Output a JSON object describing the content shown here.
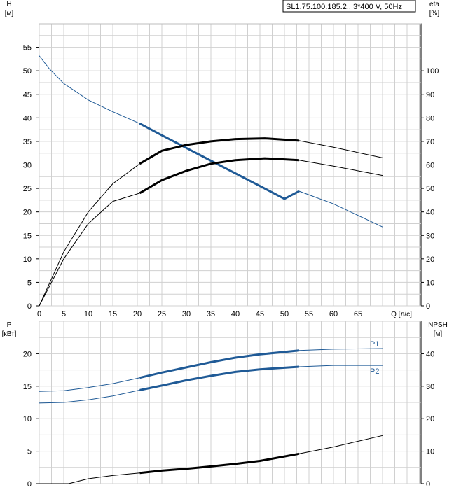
{
  "chart_data": [
    {
      "type": "line",
      "title_box": "SL1.75.100.185.2., 3*400 V, 50Hz",
      "xlabel": "Q [л/с]",
      "ylabel_left": [
        "H",
        "[м]"
      ],
      "ylabel_right": [
        "eta",
        "[%]"
      ],
      "xlim": [
        0,
        70
      ],
      "x_ticks": [
        0,
        5,
        10,
        15,
        20,
        25,
        30,
        35,
        40,
        45,
        50,
        55,
        60,
        65
      ],
      "ylim_left": [
        0,
        60
      ],
      "y_ticks_left": [
        0,
        5,
        10,
        15,
        20,
        25,
        30,
        35,
        40,
        45,
        50,
        55
      ],
      "ylim_right": [
        0,
        120
      ],
      "y_ticks_right": [
        0,
        10,
        20,
        30,
        40,
        50,
        60,
        70,
        80,
        90,
        100
      ],
      "grid": true,
      "series": [
        {
          "axis": "left",
          "color": "#1f5a96",
          "x": [
            0,
            2,
            5,
            10,
            15,
            20.5,
            25,
            30,
            35,
            40,
            45,
            50,
            53,
            60,
            70
          ],
          "y": [
            53.2,
            50.5,
            47.3,
            43.8,
            41.3,
            38.8,
            36.3,
            33.6,
            30.9,
            28.2,
            25.5,
            22.8,
            24.4,
            21.7,
            16.8
          ],
          "bold_range": [
            20.5,
            53
          ]
        },
        {
          "axis": "right",
          "color": "#000000",
          "x": [
            0,
            5,
            10,
            15,
            20.5,
            25,
            30,
            35,
            40,
            46,
            53,
            60,
            70
          ],
          "y": [
            0,
            23,
            40,
            52,
            60.5,
            66,
            68.5,
            70,
            71,
            71.3,
            70.3,
            67.5,
            63
          ],
          "bold_range": [
            20.5,
            53
          ]
        },
        {
          "axis": "right",
          "color": "#000000",
          "x": [
            0,
            5,
            10,
            15,
            20.5,
            25,
            30,
            35,
            40,
            46,
            53,
            60,
            70
          ],
          "y": [
            0,
            20,
            35,
            44.5,
            48,
            53.5,
            57.5,
            60.5,
            62,
            62.8,
            62,
            59.5,
            55.5
          ],
          "bold_range": [
            20.5,
            53
          ]
        }
      ]
    },
    {
      "type": "line",
      "xlim": [
        0,
        70
      ],
      "ylabel_left": [
        "P",
        "[кВт]"
      ],
      "ylabel_right": [
        "NPSH",
        "[м]"
      ],
      "ylim_left": [
        0,
        25
      ],
      "y_ticks_left": [
        0,
        5,
        10,
        15,
        20
      ],
      "ylim_right": [
        0,
        50
      ],
      "y_ticks_right": [
        0,
        10,
        20,
        30,
        40
      ],
      "grid": true,
      "series": [
        {
          "name": "P1",
          "axis": "left",
          "color": "#1f5a96",
          "x": [
            0,
            5,
            10,
            15,
            20.5,
            25,
            30,
            35,
            40,
            45,
            53,
            60,
            70
          ],
          "y": [
            14.2,
            14.3,
            14.8,
            15.4,
            16.3,
            17.1,
            17.9,
            18.7,
            19.4,
            19.9,
            20.5,
            20.7,
            20.8
          ],
          "bold_range": [
            20.5,
            53
          ]
        },
        {
          "name": "P2",
          "axis": "left",
          "color": "#1f5a96",
          "x": [
            0,
            5,
            10,
            15,
            20.5,
            25,
            30,
            35,
            40,
            45,
            53,
            60,
            70
          ],
          "y": [
            12.4,
            12.5,
            12.9,
            13.5,
            14.4,
            15.1,
            15.9,
            16.6,
            17.2,
            17.6,
            18.0,
            18.2,
            18.2
          ],
          "bold_range": [
            20.5,
            53
          ]
        },
        {
          "axis": "right",
          "color": "#000000",
          "x": [
            0,
            6,
            10,
            15,
            20.5,
            25,
            30,
            35,
            40,
            45,
            53,
            60,
            70
          ],
          "y": [
            0,
            0,
            1.5,
            2.5,
            3.3,
            4,
            4.6,
            5.3,
            6.1,
            7.0,
            9.2,
            11.3,
            14.8
          ],
          "bold_range": [
            20.5,
            53
          ]
        }
      ]
    }
  ]
}
